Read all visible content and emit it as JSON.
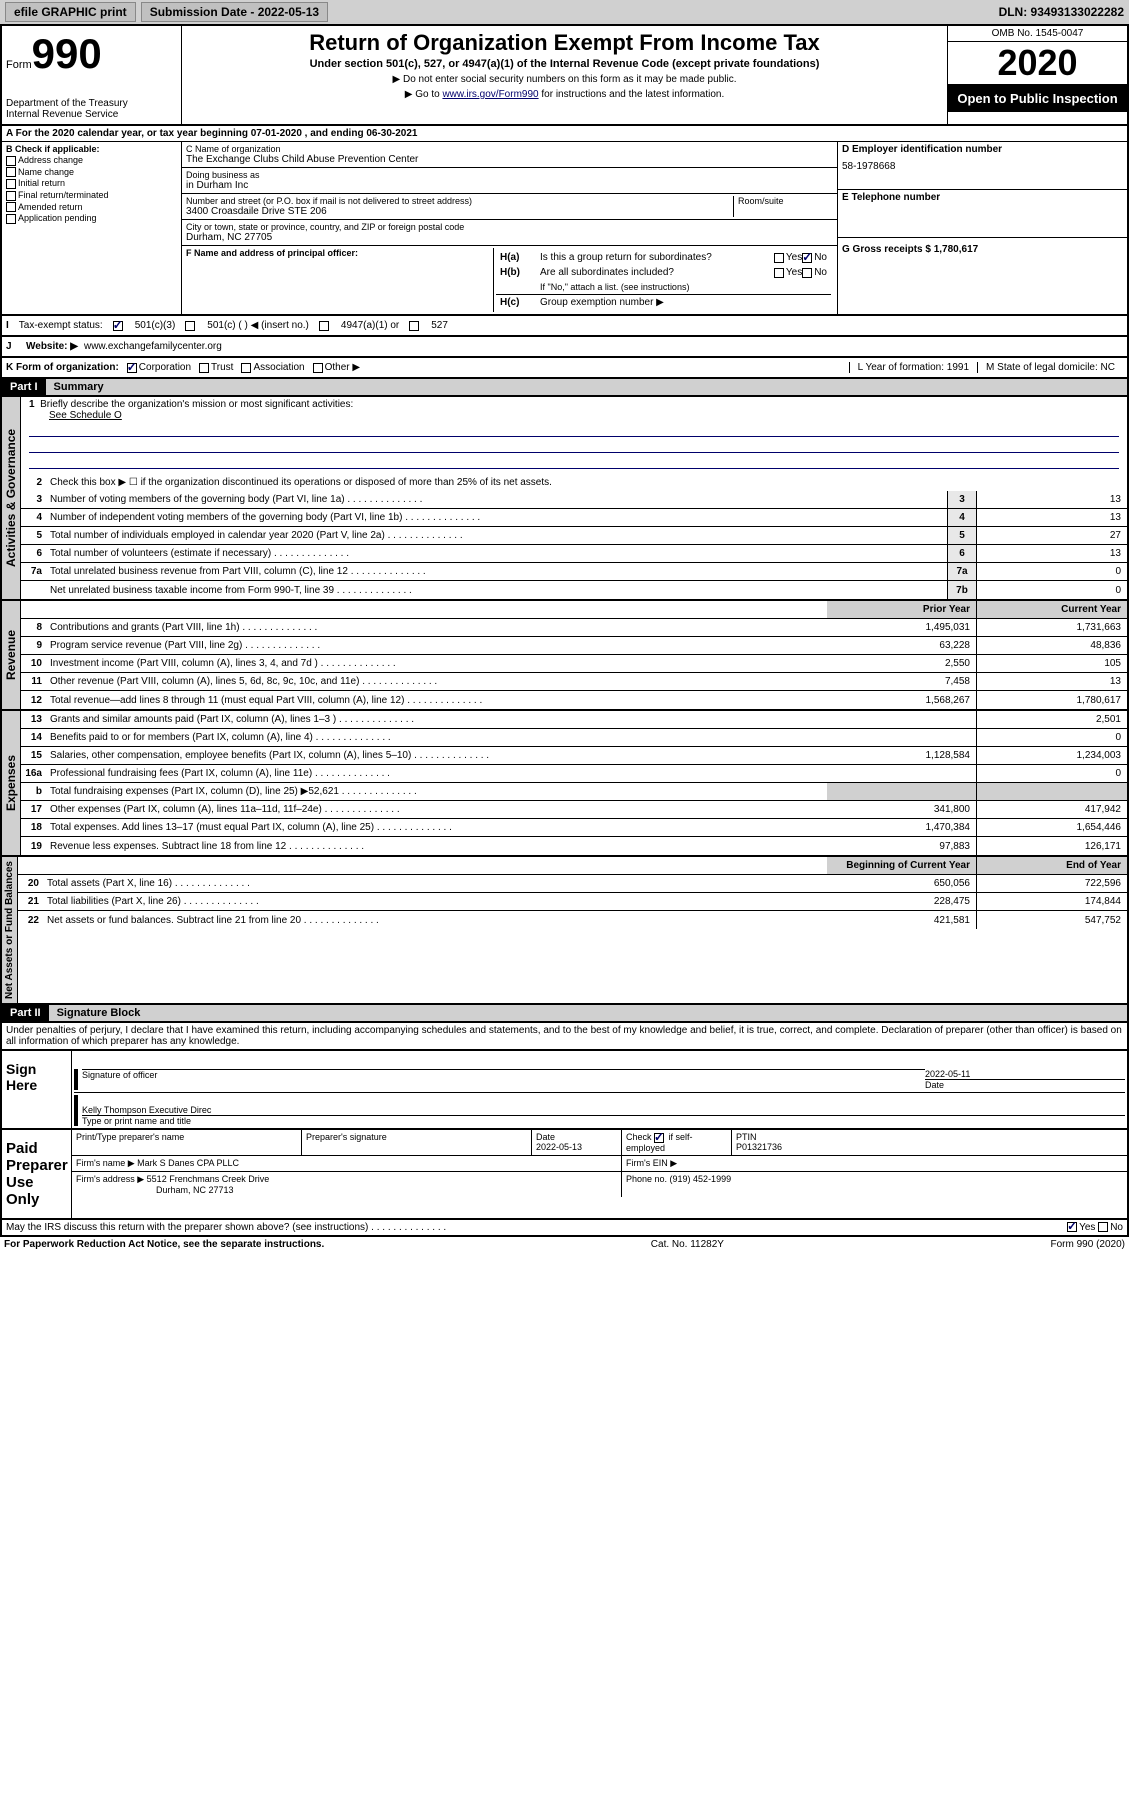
{
  "topbar": {
    "efile": "efile GRAPHIC print",
    "submission": "Submission Date - 2022-05-13",
    "dln": "DLN: 93493133022282"
  },
  "header": {
    "form_word": "Form",
    "form_num": "990",
    "title": "Return of Organization Exempt From Income Tax",
    "subtitle": "Under section 501(c), 527, or 4947(a)(1) of the Internal Revenue Code (except private foundations)",
    "note1": "▶ Do not enter social security numbers on this form as it may be made public.",
    "note2_pre": "▶ Go to ",
    "note2_link": "www.irs.gov/Form990",
    "note2_post": " for instructions and the latest information.",
    "dept": "Department of the Treasury\nInternal Revenue Service",
    "omb": "OMB No. 1545-0047",
    "year": "2020",
    "inspection": "Open to Public Inspection"
  },
  "section_a": {
    "tax_year": "For the 2020 calendar year, or tax year beginning 07-01-2020   , and ending 06-30-2021",
    "b_label": "B Check if applicable:",
    "b_items": [
      "Address change",
      "Name change",
      "Initial return",
      "Final return/terminated",
      "Amended return",
      "Application pending"
    ],
    "c_label": "C Name of organization",
    "c_name": "The Exchange Clubs Child Abuse Prevention Center",
    "dba_label": "Doing business as",
    "dba": "in Durham Inc",
    "addr_label": "Number and street (or P.O. box if mail is not delivered to street address)",
    "room_label": "Room/suite",
    "addr": "3400 Croasdaile Drive STE 206",
    "city_label": "City or town, state or province, country, and ZIP or foreign postal code",
    "city": "Durham, NC  27705",
    "d_label": "D Employer identification number",
    "d_ein": "58-1978668",
    "e_label": "E Telephone number",
    "g_label": "G Gross receipts $ 1,780,617",
    "f_label": "F Name and address of principal officer:",
    "ha_label": "H(a)",
    "ha_text": "Is this a group return for subordinates?",
    "hb_label": "H(b)",
    "hb_text": "Are all subordinates included?",
    "hb_note": "If \"No,\" attach a list. (see instructions)",
    "hc_label": "H(c)",
    "hc_text": "Group exemption number ▶",
    "yes": "Yes",
    "no": "No"
  },
  "status": {
    "i_label": "Tax-exempt status:",
    "opts": [
      "501(c)(3)",
      "501(c) (  ) ◀ (insert no.)",
      "4947(a)(1) or",
      "527"
    ],
    "j_label": "J",
    "website_label": "Website: ▶",
    "website": "www.exchangefamilycenter.org",
    "k_label": "K Form of organization:",
    "k_opts": [
      "Corporation",
      "Trust",
      "Association",
      "Other ▶"
    ],
    "l_label": "L Year of formation: 1991",
    "m_label": "M State of legal domicile: NC"
  },
  "part1": {
    "header": "Part I",
    "title": "Summary",
    "vert_gov": "Activities & Governance",
    "vert_rev": "Revenue",
    "vert_exp": "Expenses",
    "vert_net": "Net Assets or Fund Balances",
    "line1": "Briefly describe the organization's mission or most significant activities:",
    "line1_val": "See Schedule O",
    "line2": "Check this box ▶ ☐  if the organization discontinued its operations or disposed of more than 25% of its net assets.",
    "lines_gov": [
      {
        "n": "3",
        "t": "Number of voting members of the governing body (Part VI, line 1a)",
        "vn": "3",
        "v": "13"
      },
      {
        "n": "4",
        "t": "Number of independent voting members of the governing body (Part VI, line 1b)",
        "vn": "4",
        "v": "13"
      },
      {
        "n": "5",
        "t": "Total number of individuals employed in calendar year 2020 (Part V, line 2a)",
        "vn": "5",
        "v": "27"
      },
      {
        "n": "6",
        "t": "Total number of volunteers (estimate if necessary)",
        "vn": "6",
        "v": "13"
      },
      {
        "n": "7a",
        "t": "Total unrelated business revenue from Part VIII, column (C), line 12",
        "vn": "7a",
        "v": "0"
      },
      {
        "n": "",
        "t": "Net unrelated business taxable income from Form 990-T, line 39",
        "vn": "7b",
        "v": "0"
      }
    ],
    "col_prior": "Prior Year",
    "col_current": "Current Year",
    "col_begin": "Beginning of Current Year",
    "col_end": "End of Year",
    "lines_rev": [
      {
        "n": "8",
        "t": "Contributions and grants (Part VIII, line 1h)",
        "p": "1,495,031",
        "c": "1,731,663"
      },
      {
        "n": "9",
        "t": "Program service revenue (Part VIII, line 2g)",
        "p": "63,228",
        "c": "48,836"
      },
      {
        "n": "10",
        "t": "Investment income (Part VIII, column (A), lines 3, 4, and 7d )",
        "p": "2,550",
        "c": "105"
      },
      {
        "n": "11",
        "t": "Other revenue (Part VIII, column (A), lines 5, 6d, 8c, 9c, 10c, and 11e)",
        "p": "7,458",
        "c": "13"
      },
      {
        "n": "12",
        "t": "Total revenue—add lines 8 through 11 (must equal Part VIII, column (A), line 12)",
        "p": "1,568,267",
        "c": "1,780,617"
      }
    ],
    "lines_exp": [
      {
        "n": "13",
        "t": "Grants and similar amounts paid (Part IX, column (A), lines 1–3 )",
        "p": "",
        "c": "2,501"
      },
      {
        "n": "14",
        "t": "Benefits paid to or for members (Part IX, column (A), line 4)",
        "p": "",
        "c": "0"
      },
      {
        "n": "15",
        "t": "Salaries, other compensation, employee benefits (Part IX, column (A), lines 5–10)",
        "p": "1,128,584",
        "c": "1,234,003"
      },
      {
        "n": "16a",
        "t": "Professional fundraising fees (Part IX, column (A), line 11e)",
        "p": "",
        "c": "0"
      },
      {
        "n": "b",
        "t": "Total fundraising expenses (Part IX, column (D), line 25) ▶52,621",
        "p": "shaded",
        "c": "shaded"
      },
      {
        "n": "17",
        "t": "Other expenses (Part IX, column (A), lines 11a–11d, 11f–24e)",
        "p": "341,800",
        "c": "417,942"
      },
      {
        "n": "18",
        "t": "Total expenses. Add lines 13–17 (must equal Part IX, column (A), line 25)",
        "p": "1,470,384",
        "c": "1,654,446"
      },
      {
        "n": "19",
        "t": "Revenue less expenses. Subtract line 18 from line 12",
        "p": "97,883",
        "c": "126,171"
      }
    ],
    "lines_net": [
      {
        "n": "20",
        "t": "Total assets (Part X, line 16)",
        "p": "650,056",
        "c": "722,596"
      },
      {
        "n": "21",
        "t": "Total liabilities (Part X, line 26)",
        "p": "228,475",
        "c": "174,844"
      },
      {
        "n": "22",
        "t": "Net assets or fund balances. Subtract line 21 from line 20",
        "p": "421,581",
        "c": "547,752"
      }
    ]
  },
  "part2": {
    "header": "Part II",
    "title": "Signature Block",
    "penalties": "Under penalties of perjury, I declare that I have examined this return, including accompanying schedules and statements, and to the best of my knowledge and belief, it is true, correct, and complete. Declaration of preparer (other than officer) is based on all information of which preparer has any knowledge.",
    "sign_here": "Sign Here",
    "sig_officer": "Signature of officer",
    "sig_date": "2022-05-11",
    "date_label": "Date",
    "officer_name": "Kelly Thompson  Executive Direc",
    "type_name": "Type or print name and title",
    "paid_prep": "Paid Preparer Use Only",
    "prep_name_label": "Print/Type preparer's name",
    "prep_sig_label": "Preparer's signature",
    "prep_date_label": "Date",
    "prep_date": "2022-05-13",
    "check_if": "Check",
    "self_emp": "if self-employed",
    "ptin_label": "PTIN",
    "ptin": "P01321736",
    "firm_name_label": "Firm's name    ▶",
    "firm_name": "Mark S Danes CPA PLLC",
    "firm_ein_label": "Firm's EIN ▶",
    "firm_addr_label": "Firm's address ▶",
    "firm_addr1": "5512 Frenchmans Creek Drive",
    "firm_addr2": "Durham, NC  27713",
    "phone_label": "Phone no. (919) 452-1999",
    "discuss": "May the IRS discuss this return with the preparer shown above? (see instructions)"
  },
  "footer": {
    "paperwork": "For Paperwork Reduction Act Notice, see the separate instructions.",
    "cat": "Cat. No. 11282Y",
    "form": "Form 990 (2020)"
  }
}
